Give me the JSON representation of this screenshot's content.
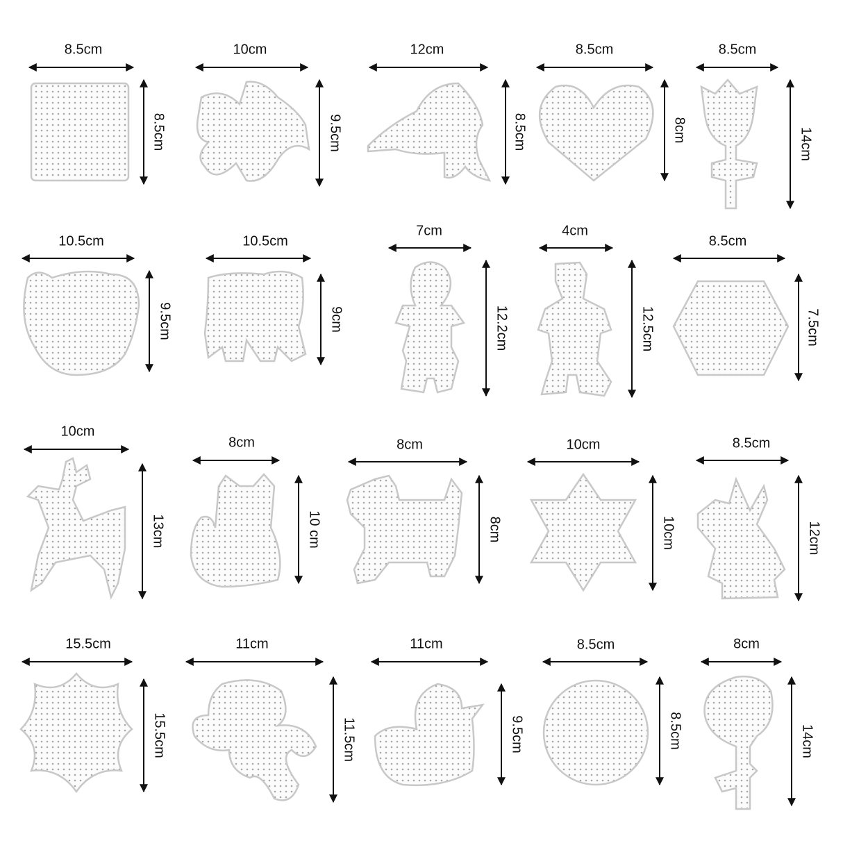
{
  "items": [
    {
      "width": "8.5cm",
      "height": "8.5cm"
    },
    {
      "width": "10cm",
      "height": "9.5cm"
    },
    {
      "width": "12cm",
      "height": "8.5cm"
    },
    {
      "width": "8.5cm",
      "height": "8cm"
    },
    {
      "width": "8.5cm",
      "height": "14cm"
    },
    {
      "width": "10.5cm",
      "height": "9.5cm"
    },
    {
      "width": "10.5cm",
      "height": "9cm"
    },
    {
      "width": "7cm",
      "height": "12.2cm"
    },
    {
      "width": "4cm",
      "height": "12.5cm"
    },
    {
      "width": "8.5cm",
      "height": "7.5cm"
    },
    {
      "width": "10cm",
      "height": "13cm"
    },
    {
      "width": "8cm",
      "height": "10 cm"
    },
    {
      "width": "8cm",
      "height": "8cm"
    },
    {
      "width": "10cm",
      "height": "10cm"
    },
    {
      "width": "8.5cm",
      "height": "12cm"
    },
    {
      "width": "15.5cm",
      "height": "15.5cm"
    },
    {
      "width": "11cm",
      "height": "11.5cm"
    },
    {
      "width": "11cm",
      "height": "9.5cm"
    },
    {
      "width": "8.5cm",
      "height": "8.5cm"
    },
    {
      "width": "8cm",
      "height": "14cm"
    }
  ]
}
